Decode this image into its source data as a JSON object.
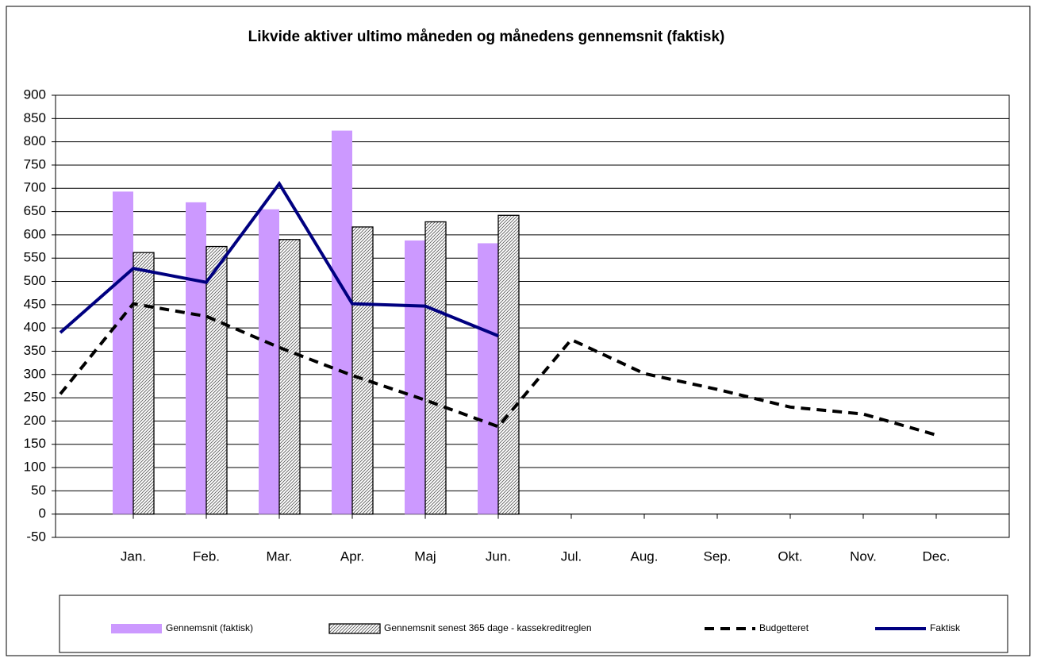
{
  "chart_data": {
    "type": "combo",
    "title": "Likvide aktiver ultimo måneden og månedens gennemsnit (faktisk)",
    "categories": [
      null,
      "Jan.",
      "Feb.",
      "Mar.",
      "Apr.",
      "Maj",
      "Jun.",
      "Jul.",
      "Aug.",
      "Sep.",
      "Okt.",
      "Nov.",
      "Dec."
    ],
    "series": [
      {
        "name": "Gennemsnit (faktisk)",
        "type": "bar",
        "color": "#cc99ff",
        "values": [
          null,
          693,
          670,
          655,
          824,
          588,
          582,
          null,
          null,
          null,
          null,
          null,
          null
        ]
      },
      {
        "name": "Gennemsnit senest 365 dage - kassekreditreglen",
        "type": "bar",
        "color": "#000000",
        "pattern": "hatched",
        "values": [
          null,
          562,
          575,
          590,
          617,
          628,
          642,
          null,
          null,
          null,
          null,
          null,
          null
        ]
      },
      {
        "name": "Budgetteret",
        "type": "line",
        "color": "#000000",
        "dash": "dashed",
        "values": [
          258,
          452,
          425,
          358,
          298,
          245,
          188,
          375,
          302,
          268,
          230,
          215,
          170
        ]
      },
      {
        "name": "Faktisk",
        "type": "line",
        "color": "#000080",
        "dash": "solid",
        "values": [
          390,
          528,
          498,
          710,
          452,
          447,
          383,
          null,
          null,
          null,
          null,
          null,
          null
        ]
      }
    ],
    "ylim": [
      -50,
      900
    ],
    "yticks": [
      -50,
      0,
      50,
      100,
      150,
      200,
      250,
      300,
      350,
      400,
      450,
      500,
      550,
      600,
      650,
      700,
      750,
      800,
      850,
      900
    ],
    "grid": true,
    "legend": "bottom"
  }
}
